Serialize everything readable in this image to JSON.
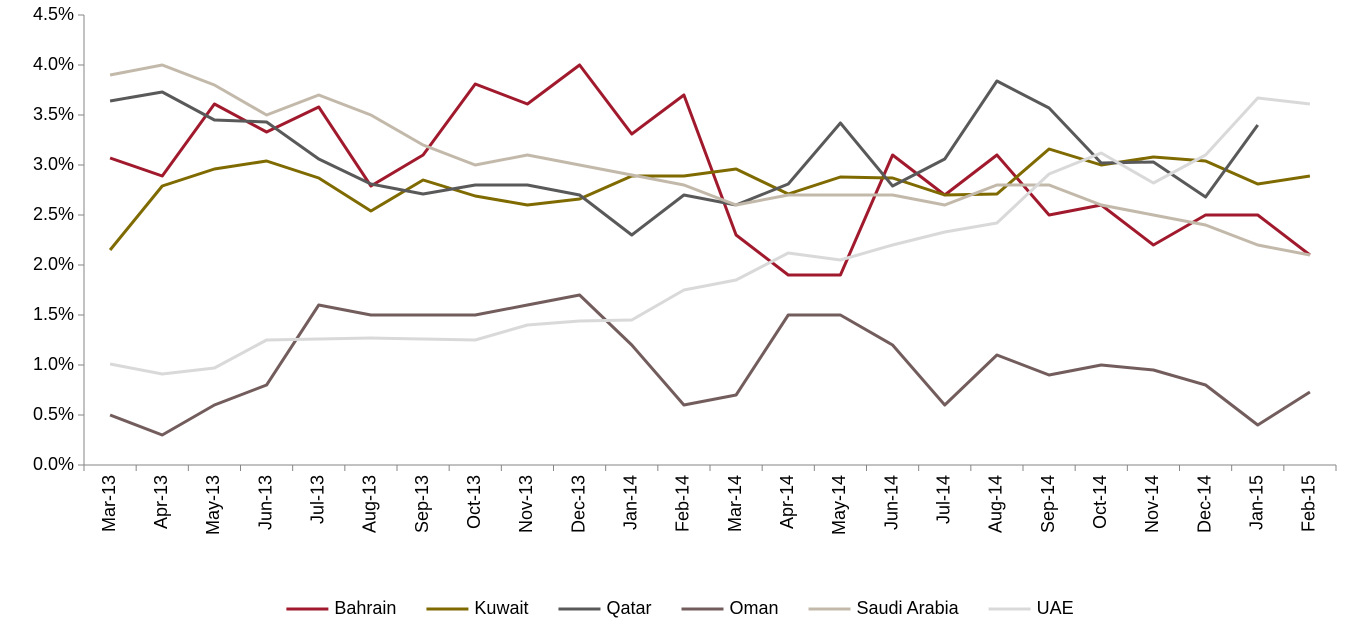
{
  "chart_data": {
    "type": "line",
    "categories": [
      "Mar-13",
      "Apr-13",
      "May-13",
      "Jun-13",
      "Jul-13",
      "Aug-13",
      "Sep-13",
      "Oct-13",
      "Nov-13",
      "Dec-13",
      "Jan-14",
      "Feb-14",
      "Mar-14",
      "Apr-14",
      "May-14",
      "Jun-14",
      "Jul-14",
      "Aug-14",
      "Sep-14",
      "Oct-14",
      "Nov-14",
      "Dec-14",
      "Jan-15",
      "Feb-15"
    ],
    "series": [
      {
        "name": "Bahrain",
        "color": "#a0192c",
        "values": [
          3.07,
          2.89,
          3.61,
          3.33,
          3.58,
          2.79,
          3.1,
          3.81,
          3.61,
          4.0,
          3.31,
          3.7,
          2.3,
          1.9,
          1.9,
          3.1,
          2.7,
          3.1,
          2.5,
          2.6,
          2.2,
          2.5,
          2.5,
          2.1
        ]
      },
      {
        "name": "Kuwait",
        "color": "#7f6a00",
        "values": [
          2.15,
          2.79,
          2.96,
          3.04,
          2.87,
          2.54,
          2.85,
          2.69,
          2.6,
          2.66,
          2.89,
          2.89,
          2.96,
          2.71,
          2.88,
          2.87,
          2.7,
          2.71,
          3.16,
          3.0,
          3.08,
          3.04,
          2.81,
          2.89
        ]
      },
      {
        "name": "Qatar",
        "color": "#595959",
        "values": [
          3.64,
          3.73,
          3.45,
          3.43,
          3.06,
          2.81,
          2.71,
          2.8,
          2.8,
          2.7,
          2.3,
          2.7,
          2.6,
          2.81,
          3.42,
          2.79,
          3.06,
          3.84,
          3.57,
          3.02,
          3.03,
          2.68,
          3.4,
          null
        ]
      },
      {
        "name": "Oman",
        "color": "#735c5c",
        "values": [
          0.5,
          0.3,
          0.6,
          0.8,
          1.6,
          1.5,
          1.5,
          1.5,
          1.6,
          1.7,
          1.2,
          0.6,
          0.7,
          1.5,
          1.5,
          1.2,
          0.6,
          1.1,
          0.9,
          1.0,
          0.95,
          0.8,
          0.4,
          0.73
        ]
      },
      {
        "name": "Saudi Arabia",
        "color": "#c3b9aa",
        "values": [
          3.9,
          4.0,
          3.8,
          3.5,
          3.7,
          3.5,
          3.2,
          3.0,
          3.1,
          3.0,
          2.9,
          2.8,
          2.6,
          2.7,
          2.7,
          2.7,
          2.6,
          2.8,
          2.8,
          2.6,
          2.5,
          2.4,
          2.2,
          2.1
        ]
      },
      {
        "name": "UAE",
        "color": "#d9d9d9",
        "values": [
          1.01,
          0.91,
          0.97,
          1.25,
          1.26,
          1.27,
          1.26,
          1.25,
          1.4,
          1.44,
          1.45,
          1.75,
          1.85,
          2.12,
          2.05,
          2.2,
          2.33,
          2.42,
          2.91,
          3.12,
          2.82,
          3.1,
          3.67,
          3.61
        ]
      }
    ],
    "ylim": [
      0,
      4.5
    ],
    "yticks": [
      {
        "value": 0,
        "label": "0.0%"
      },
      {
        "value": 0.5,
        "label": "0.5%"
      },
      {
        "value": 1,
        "label": "1.0%"
      },
      {
        "value": 1.5,
        "label": "1.5%"
      },
      {
        "value": 2,
        "label": "2.0%"
      },
      {
        "value": 2.5,
        "label": "2.5%"
      },
      {
        "value": 3,
        "label": "3.0%"
      },
      {
        "value": 3.5,
        "label": "3.5%"
      },
      {
        "value": 4,
        "label": "4.0%"
      },
      {
        "value": 4.5,
        "label": "4.5%"
      }
    ],
    "grid": false,
    "legend": "bottom"
  }
}
